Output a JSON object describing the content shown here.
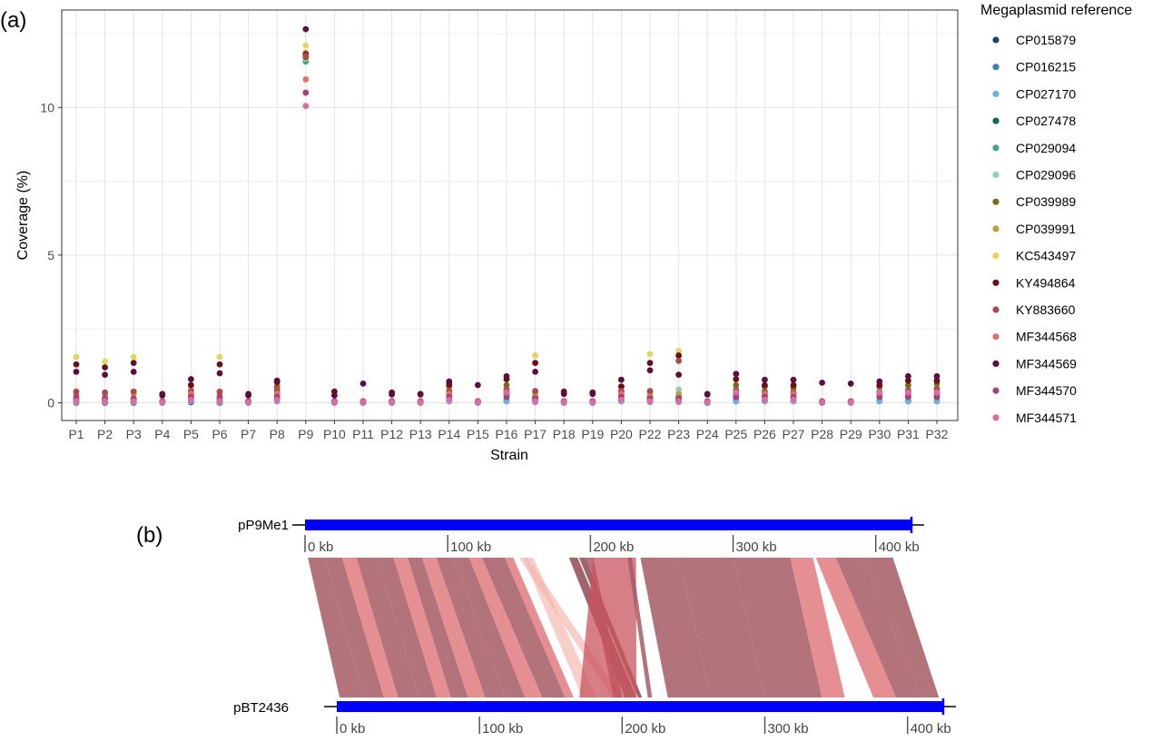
{
  "panel_a_label": "(a)",
  "panel_b_label": "(b)",
  "chart_data": [
    {
      "type": "scatter",
      "title": "",
      "xlabel": "Strain",
      "ylabel": "Coverage (%)",
      "ylim": [
        -0.6,
        13.3
      ],
      "yticks": [
        0,
        5,
        10
      ],
      "grid": true,
      "legend": {
        "title": "Megaplasmid reference",
        "placement": "right"
      },
      "categories": [
        "P1",
        "P2",
        "P3",
        "P4",
        "P5",
        "P6",
        "P7",
        "P8",
        "P9",
        "P10",
        "P11",
        "P12",
        "P13",
        "P14",
        "P15",
        "P16",
        "P17",
        "P18",
        "P19",
        "P20",
        "P22",
        "P23",
        "P24",
        "P25",
        "P26",
        "P27",
        "P28",
        "P29",
        "P30",
        "P31",
        "P32"
      ],
      "series": [
        {
          "name": "CP015879",
          "color": "#16476e",
          "values": [
            0,
            0,
            0,
            0,
            0.02,
            0,
            0,
            0.05,
            null,
            0,
            0,
            0,
            0,
            0.05,
            0,
            0.05,
            0.05,
            0,
            0,
            0.05,
            0.05,
            0.05,
            0,
            0.05,
            0.05,
            0.05,
            0,
            0,
            0.05,
            0.05,
            0.05
          ]
        },
        {
          "name": "CP016215",
          "color": "#3d7fae",
          "values": [
            0.05,
            0.05,
            0.05,
            0,
            0.12,
            0.05,
            0,
            0.1,
            null,
            0,
            0,
            0,
            0,
            0.1,
            0,
            0.1,
            0.08,
            0,
            0,
            0.1,
            0.08,
            0.08,
            0,
            0.1,
            0.1,
            0.08,
            0,
            0,
            0.08,
            0.08,
            0.08
          ]
        },
        {
          "name": "CP027170",
          "color": "#6ab4df",
          "values": [
            0.02,
            0.02,
            0.02,
            0,
            0.05,
            0.02,
            0,
            0.05,
            null,
            0,
            0,
            0,
            0,
            0.05,
            0,
            0.05,
            0.02,
            0,
            0,
            0.05,
            0.02,
            0.02,
            0,
            0.05,
            0.05,
            0.05,
            0,
            0,
            0.05,
            0.05,
            0.05
          ]
        },
        {
          "name": "CP027478",
          "color": "#0e6b52",
          "values": [
            0.1,
            0.08,
            0.08,
            0.05,
            0.25,
            0.1,
            0.05,
            0.2,
            null,
            0.05,
            0.03,
            0.05,
            0.05,
            0.25,
            0.03,
            0.25,
            0.15,
            0.05,
            0.05,
            0.25,
            0.15,
            0.15,
            0.05,
            0.2,
            0.25,
            0.2,
            0.03,
            0.03,
            0.2,
            0.2,
            0.2
          ]
        },
        {
          "name": "CP029094",
          "color": "#3aaa80",
          "values": [
            0.05,
            0.05,
            0.05,
            0.05,
            0.3,
            0.05,
            0.05,
            0.4,
            11.55,
            0.05,
            0.03,
            0.05,
            0.05,
            0.35,
            0.03,
            0.4,
            0.1,
            0.05,
            0.05,
            0.4,
            0.1,
            0.1,
            0.05,
            0.45,
            0.4,
            0.35,
            0.03,
            0.03,
            0.4,
            0.45,
            0.5
          ]
        },
        {
          "name": "CP029096",
          "color": "#8fd0bd",
          "values": [
            0.15,
            0.12,
            0.1,
            0.05,
            0.2,
            0.15,
            0.05,
            0.3,
            11.65,
            0.05,
            0.03,
            0.05,
            0.05,
            0.25,
            0.03,
            0.3,
            0.35,
            0.05,
            0.05,
            0.3,
            0.12,
            0.45,
            0.05,
            0.3,
            0.3,
            0.25,
            0.03,
            0.03,
            0.3,
            0.3,
            0.3
          ]
        },
        {
          "name": "CP039989",
          "color": "#7a6d0e",
          "values": [
            0.12,
            0.1,
            0.12,
            0.05,
            0.5,
            0.12,
            0.05,
            0.55,
            11.7,
            0.05,
            0.03,
            0.05,
            0.05,
            0.55,
            0.03,
            0.6,
            0.2,
            0.05,
            0.05,
            0.55,
            0.2,
            0.2,
            0.05,
            0.6,
            0.55,
            0.5,
            0.03,
            0.03,
            0.55,
            0.6,
            0.65
          ]
        },
        {
          "name": "CP039991",
          "color": "#b3a33a",
          "values": [
            0.3,
            0.25,
            0.3,
            0.05,
            0.2,
            0.3,
            0.05,
            0.25,
            11.85,
            0.05,
            0.03,
            0.05,
            0.05,
            0.2,
            0.03,
            0.25,
            0.3,
            0.05,
            0.05,
            0.25,
            0.3,
            0.3,
            0.05,
            0.25,
            0.25,
            0.2,
            0.03,
            0.03,
            0.25,
            0.25,
            0.25
          ]
        },
        {
          "name": "KC543497",
          "color": "#e3d55d",
          "values": [
            1.55,
            1.4,
            1.55,
            0.05,
            0.5,
            1.55,
            0.05,
            0.3,
            12.1,
            0.05,
            0.03,
            0.05,
            0.05,
            0.3,
            0.03,
            0.3,
            1.6,
            0.05,
            0.05,
            0.3,
            1.65,
            1.75,
            0.05,
            0.3,
            0.3,
            0.3,
            0.03,
            0.03,
            0.3,
            0.3,
            0.3
          ]
        },
        {
          "name": "KY494864",
          "color": "#6b0f1a",
          "values": [
            1.3,
            1.2,
            1.35,
            0.3,
            0.6,
            1.3,
            0.3,
            0.7,
            11.8,
            0.38,
            0.05,
            0.35,
            0.3,
            0.62,
            0.05,
            0.8,
            1.35,
            0.38,
            0.35,
            0.55,
            1.35,
            1.6,
            0.3,
            0.8,
            0.6,
            0.6,
            0.05,
            0.05,
            0.6,
            0.75,
            0.75
          ]
        },
        {
          "name": "KY883660",
          "color": "#b4474b",
          "values": [
            0.38,
            0.35,
            0.38,
            0.05,
            0.4,
            0.38,
            0.05,
            0.45,
            11.75,
            0.05,
            0.05,
            0.05,
            0.05,
            0.4,
            0.05,
            0.45,
            0.4,
            0.05,
            0.05,
            0.4,
            0.4,
            1.42,
            0.05,
            0.4,
            0.35,
            0.35,
            0.05,
            0.05,
            0.35,
            0.4,
            0.45
          ]
        },
        {
          "name": "MF344568",
          "color": "#e0706a",
          "values": [
            0.1,
            0.08,
            0.08,
            0.05,
            0.3,
            0.1,
            0.05,
            0.3,
            10.95,
            0.05,
            0.03,
            0.05,
            0.05,
            0.3,
            0.03,
            0.3,
            0.1,
            0.05,
            0.05,
            0.3,
            0.1,
            0.1,
            0.05,
            0.3,
            0.3,
            0.3,
            0.03,
            0.03,
            0.3,
            0.3,
            0.3
          ]
        },
        {
          "name": "MF344569",
          "color": "#5e0d3d",
          "values": [
            1.05,
            0.95,
            1.05,
            0.25,
            0.8,
            1.0,
            0.25,
            0.75,
            12.65,
            0.25,
            0.65,
            0.28,
            0.28,
            0.72,
            0.6,
            0.9,
            1.05,
            0.3,
            0.3,
            0.78,
            1.1,
            0.95,
            0.28,
            0.98,
            0.78,
            0.78,
            0.68,
            0.65,
            0.72,
            0.9,
            0.9
          ]
        },
        {
          "name": "MF344570",
          "color": "#a7417d",
          "values": [
            0.2,
            0.15,
            0.15,
            0.05,
            0.2,
            0.2,
            0.05,
            0.2,
            10.5,
            0.05,
            0.03,
            0.05,
            0.05,
            0.2,
            0.03,
            0.2,
            0.15,
            0.05,
            0.05,
            0.2,
            0.15,
            0.15,
            0.05,
            0.2,
            0.2,
            0.2,
            0.03,
            0.03,
            0.2,
            0.2,
            0.2
          ]
        },
        {
          "name": "MF344571",
          "color": "#e069a0",
          "values": [
            0.05,
            0.05,
            0.05,
            0.02,
            0.1,
            0.05,
            0.02,
            0.1,
            10.05,
            0.02,
            0.02,
            0.02,
            0.02,
            0.1,
            0.02,
            0.35,
            0.05,
            0.02,
            0.02,
            0.1,
            0.05,
            0.05,
            0.02,
            0.35,
            0.1,
            0.1,
            0.02,
            0.02,
            0.35,
            0.35,
            0.35
          ]
        }
      ]
    },
    {
      "type": "synteny",
      "sequences": [
        {
          "name": "pP9Me1",
          "length_kb": 425,
          "ticks": [
            "0 kb",
            "100 kb",
            "200 kb",
            "300 kb",
            "400 kb"
          ],
          "color": "#0000ff"
        },
        {
          "name": "pBT2436",
          "length_kb": 425,
          "ticks": [
            "0 kb",
            "100 kb",
            "200 kb",
            "300 kb",
            "400 kb"
          ],
          "color": "#0000ff"
        }
      ],
      "alignments_kb": [
        {
          "top": [
            2,
            14
          ],
          "bottom": [
            2,
            19
          ],
          "shade": "dark"
        },
        {
          "top": [
            14,
            26
          ],
          "bottom": [
            19,
            33
          ],
          "shade": "dark"
        },
        {
          "top": [
            26,
            36
          ],
          "bottom": [
            33,
            43
          ],
          "shade": "light"
        },
        {
          "top": [
            36,
            50
          ],
          "bottom": [
            43,
            58
          ],
          "shade": "dark"
        },
        {
          "top": [
            50,
            62
          ],
          "bottom": [
            58,
            70
          ],
          "shade": "dark"
        },
        {
          "top": [
            62,
            72
          ],
          "bottom": [
            70,
            80
          ],
          "shade": "light"
        },
        {
          "top": [
            72,
            82
          ],
          "bottom": [
            80,
            92
          ],
          "shade": "dark"
        },
        {
          "top": [
            82,
            92
          ],
          "bottom": [
            92,
            104
          ],
          "shade": "light"
        },
        {
          "top": [
            92,
            104
          ],
          "bottom": [
            104,
            118
          ],
          "shade": "dark"
        },
        {
          "top": [
            104,
            115
          ],
          "bottom": [
            118,
            132
          ],
          "shade": "dark"
        },
        {
          "top": [
            115,
            124
          ],
          "bottom": [
            132,
            144
          ],
          "shade": "light"
        },
        {
          "top": [
            124,
            140
          ],
          "bottom": [
            144,
            160
          ],
          "shade": "dark"
        },
        {
          "top": [
            140,
            146
          ],
          "bottom": [
            160,
            166
          ],
          "shade": "light"
        },
        {
          "top": [
            150,
            156
          ],
          "bottom": [
            193,
            200
          ],
          "shade": "faint"
        },
        {
          "top": [
            153,
            160
          ],
          "bottom": [
            172,
            182
          ],
          "shade": "faint"
        },
        {
          "top": [
            185,
            191
          ],
          "bottom": [
            202,
            210
          ],
          "shade": "mid"
        },
        {
          "top": [
            192,
            196
          ],
          "bottom": [
            211,
            214
          ],
          "shade": "mid"
        },
        {
          "top": [
            196,
            202
          ],
          "bottom": [
            194,
            200
          ],
          "shade": "dark"
        },
        {
          "top": [
            202,
            232
          ],
          "bottom": [
            170,
            210
          ],
          "shade": "mixed"
        },
        {
          "top": [
            226,
            229
          ],
          "bottom": [
            218,
            221
          ],
          "shade": "dark"
        },
        {
          "top": [
            235,
            262
          ],
          "bottom": [
            232,
            262
          ],
          "shade": "dark"
        },
        {
          "top": [
            262,
            300
          ],
          "bottom": [
            262,
            300
          ],
          "shade": "dark"
        },
        {
          "top": [
            300,
            340
          ],
          "bottom": [
            300,
            340
          ],
          "shade": "dark"
        },
        {
          "top": [
            340,
            356
          ],
          "bottom": [
            340,
            356
          ],
          "shade": "light"
        },
        {
          "top": [
            358,
            372
          ],
          "bottom": [
            376,
            392
          ],
          "shade": "light"
        },
        {
          "top": [
            372,
            390
          ],
          "bottom": [
            392,
            410
          ],
          "shade": "dark"
        },
        {
          "top": [
            390,
            412
          ],
          "bottom": [
            410,
            422
          ],
          "shade": "dark"
        }
      ]
    }
  ]
}
